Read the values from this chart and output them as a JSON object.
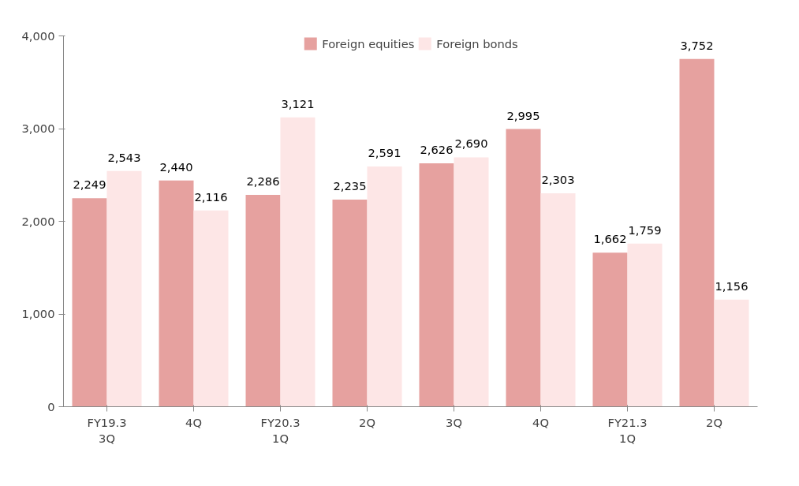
{
  "chart_data": {
    "type": "bar",
    "categories": [
      "FY19.3\n3Q",
      "4Q",
      "FY20.3\n1Q",
      "2Q",
      "3Q",
      "4Q",
      "FY21.3\n1Q",
      "2Q"
    ],
    "series": [
      {
        "name": "Foreign equities",
        "color": "#e6a19f",
        "values": [
          2249,
          2440,
          2286,
          2235,
          2626,
          2995,
          1662,
          3752
        ],
        "value_labels": [
          "2,249",
          "2,440",
          "2,286",
          "2,235",
          "2,626",
          "2,995",
          "1,662",
          "3,752"
        ]
      },
      {
        "name": "Foreign bonds",
        "color": "#fde6e6",
        "values": [
          2543,
          2116,
          3121,
          2591,
          2690,
          2303,
          1759,
          1156
        ],
        "value_labels": [
          "2,543",
          "2,116",
          "3,121",
          "2,591",
          "2,690",
          "2,303",
          "1,759",
          "1,156"
        ]
      }
    ],
    "ylim": [
      0,
      4000
    ],
    "yticks": [
      0,
      {
        "value": 1000,
        "label": "1,000"
      },
      {
        "value": 2000,
        "label": "2,000"
      },
      {
        "value": 3000,
        "label": "3,000"
      },
      {
        "value": 4000,
        "label": "4,000"
      }
    ],
    "grid": false,
    "legend": "top"
  }
}
